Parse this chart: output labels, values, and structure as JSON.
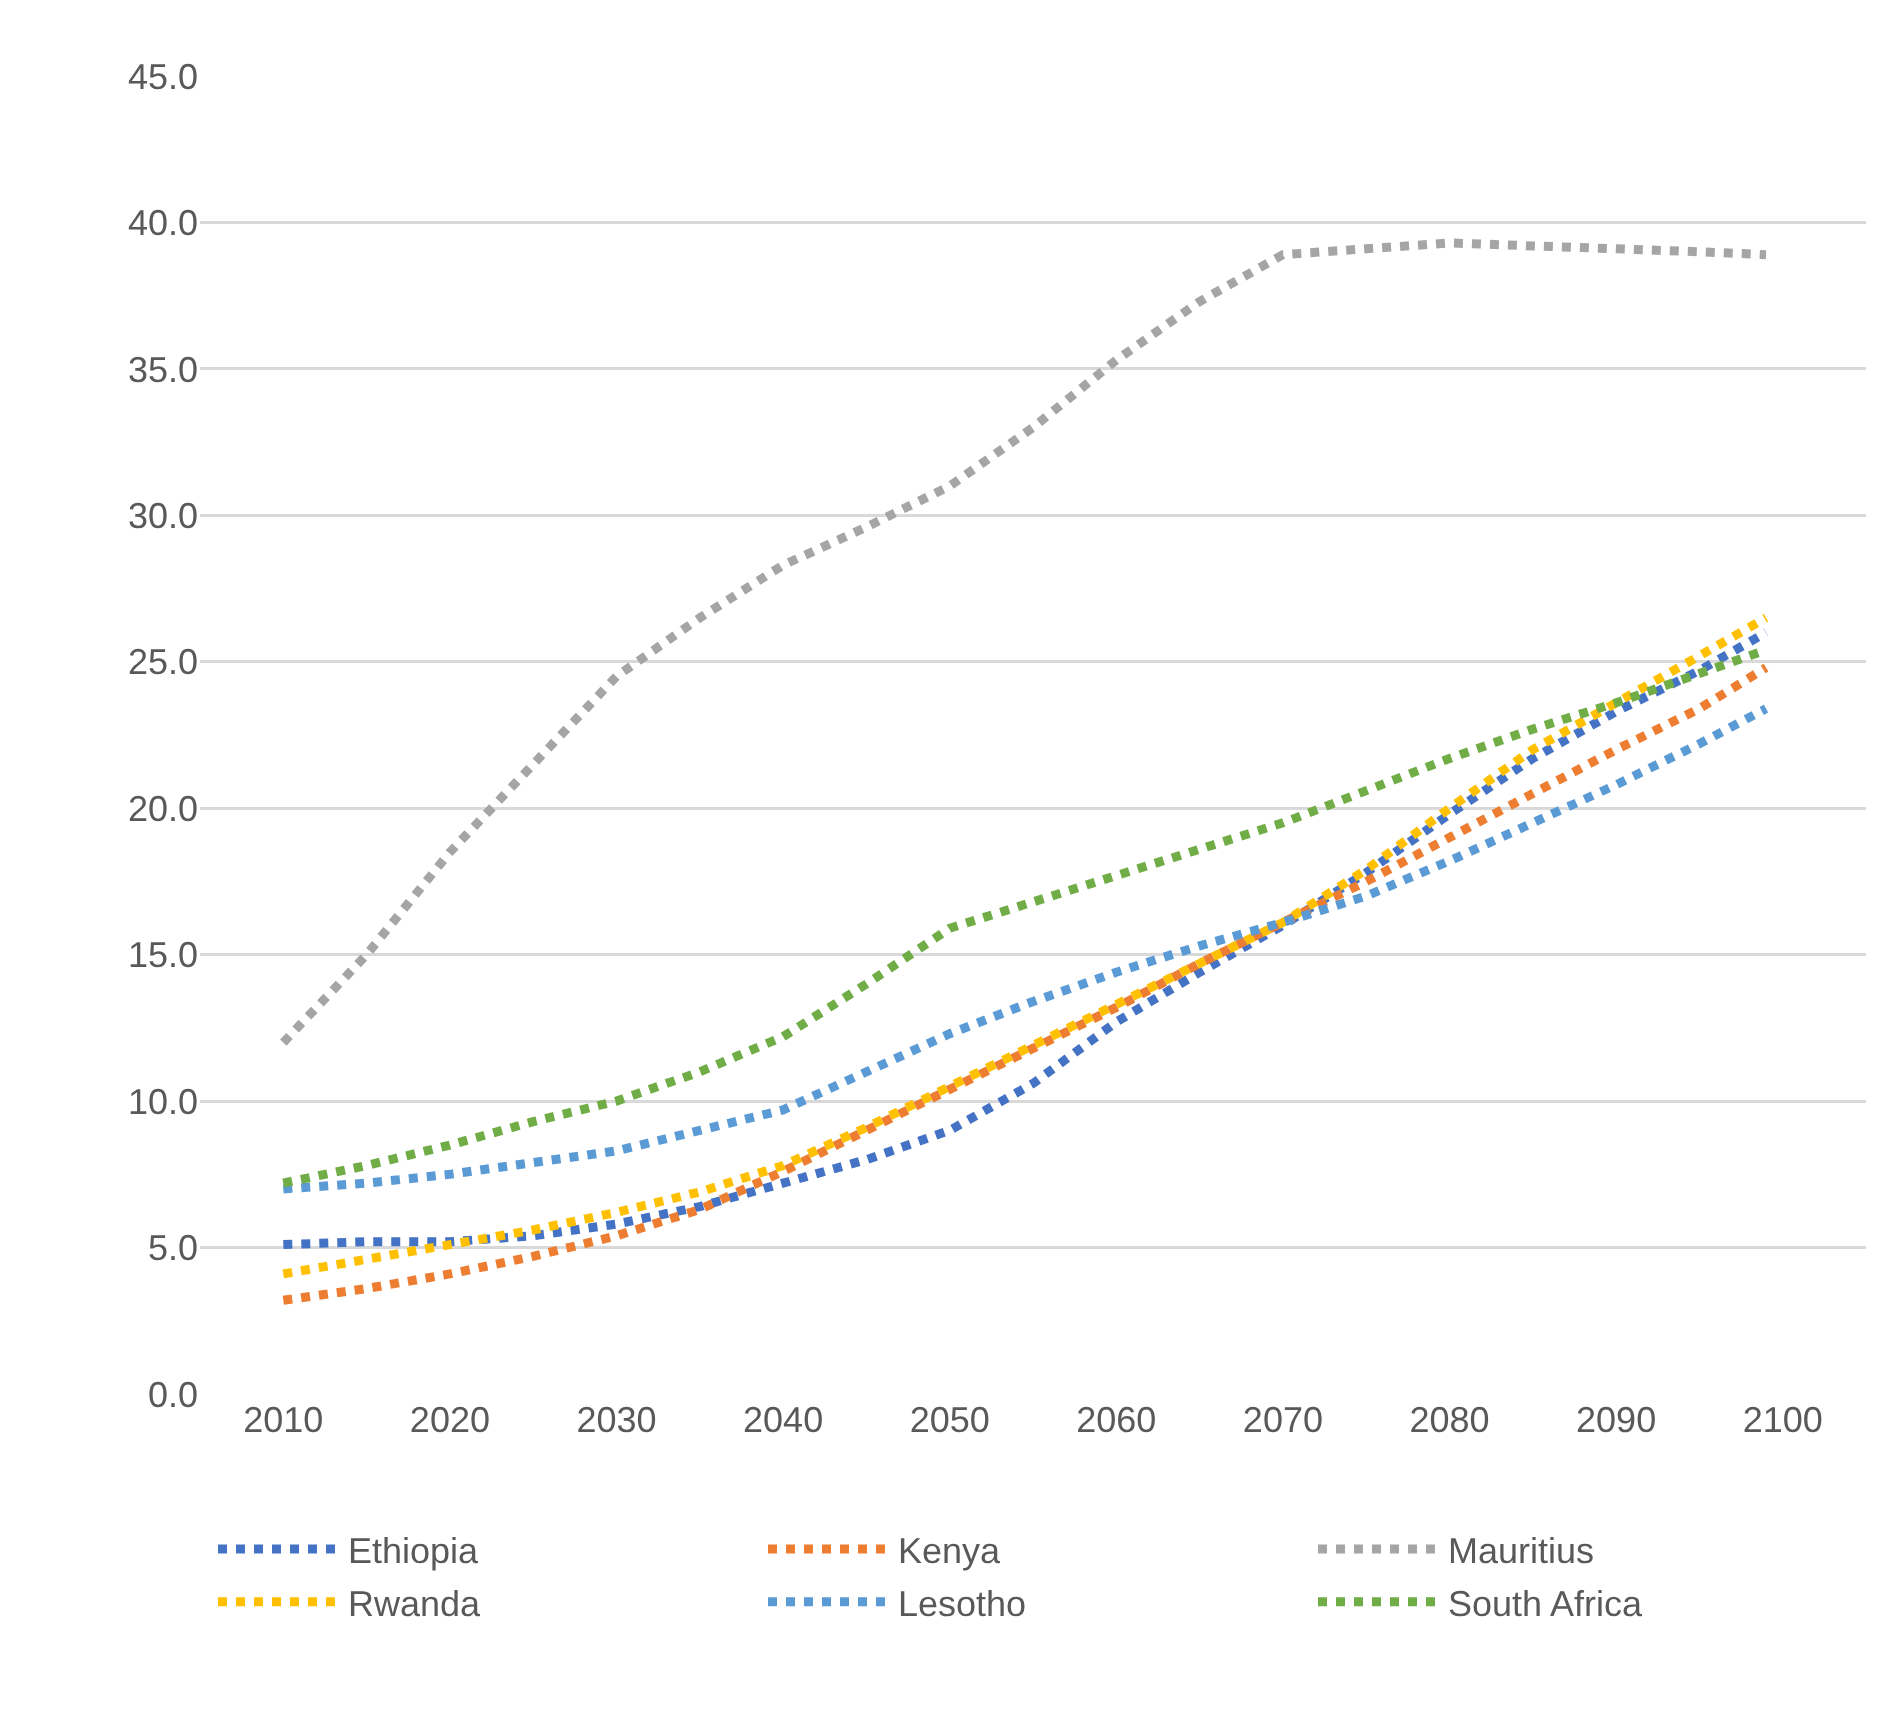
{
  "chart_data": {
    "type": "line",
    "x": [
      2010,
      2015,
      2020,
      2025,
      2030,
      2035,
      2040,
      2045,
      2050,
      2055,
      2060,
      2065,
      2070,
      2075,
      2080,
      2085,
      2090,
      2095,
      2099
    ],
    "series": [
      {
        "name": "Ethiopia",
        "color": "#4472c4",
        "values": [
          5.1,
          5.2,
          5.2,
          5.4,
          5.8,
          6.4,
          7.2,
          8.0,
          9.0,
          10.6,
          12.7,
          14.4,
          16.0,
          17.8,
          19.8,
          21.7,
          23.3,
          24.7,
          26.0
        ]
      },
      {
        "name": "Kenya",
        "color": "#ed7d31",
        "values": [
          3.2,
          3.6,
          4.1,
          4.7,
          5.4,
          6.3,
          7.6,
          9.0,
          10.4,
          11.8,
          13.2,
          14.7,
          16.1,
          17.5,
          19.0,
          20.5,
          22.0,
          23.4,
          24.8
        ]
      },
      {
        "name": "Mauritius",
        "color": "#a5a5a5",
        "values": [
          12.0,
          15.0,
          18.5,
          21.5,
          24.5,
          26.5,
          28.3,
          29.6,
          31.0,
          33.0,
          35.3,
          37.3,
          38.9,
          39.1,
          39.3,
          39.2,
          39.1,
          39.0,
          38.9
        ]
      },
      {
        "name": "Rwanda",
        "color": "#ffc000",
        "values": [
          4.1,
          4.6,
          5.1,
          5.6,
          6.2,
          6.9,
          7.8,
          9.1,
          10.5,
          11.9,
          13.3,
          14.7,
          16.1,
          17.9,
          20.0,
          22.0,
          23.6,
          25.2,
          26.5
        ]
      },
      {
        "name": "Lesotho",
        "color": "#5b9bd5",
        "values": [
          7.0,
          7.2,
          7.5,
          7.9,
          8.3,
          9.0,
          9.7,
          11.0,
          12.3,
          13.4,
          14.4,
          15.3,
          16.1,
          17.0,
          18.2,
          19.5,
          20.8,
          22.2,
          23.4
        ]
      },
      {
        "name": "South Africa",
        "color": "#70ad47",
        "values": [
          7.2,
          7.8,
          8.5,
          9.3,
          10.0,
          11.0,
          12.2,
          14.0,
          15.9,
          16.8,
          17.7,
          18.6,
          19.5,
          20.6,
          21.7,
          22.7,
          23.6,
          24.6,
          25.4
        ]
      }
    ],
    "xlim": [
      2005,
      2105
    ],
    "xticks": [
      2010,
      2020,
      2030,
      2040,
      2050,
      2060,
      2070,
      2080,
      2090,
      2100
    ],
    "ylim": [
      0,
      45
    ],
    "yticks": [
      {
        "value": 0,
        "label": "0.0"
      },
      {
        "value": 5,
        "label": "5.0"
      },
      {
        "value": 10,
        "label": "10.0"
      },
      {
        "value": 15,
        "label": "15.0"
      },
      {
        "value": 20,
        "label": "20.0"
      },
      {
        "value": 25,
        "label": "25.0"
      },
      {
        "value": 30,
        "label": "30.0"
      },
      {
        "value": 35,
        "label": "35.0"
      },
      {
        "value": 40,
        "label": "40.0"
      },
      {
        "value": 45,
        "label": "45.0"
      }
    ],
    "grid": "y",
    "legend": "bottom",
    "line_style": "dotted",
    "marker": "none"
  }
}
